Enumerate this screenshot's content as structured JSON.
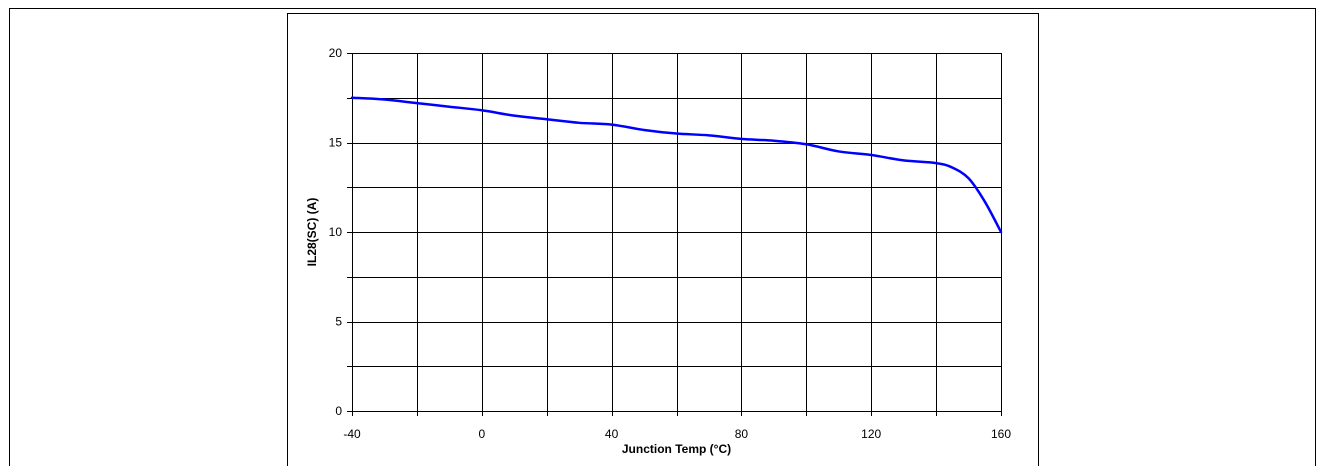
{
  "chart_data": {
    "type": "line",
    "title": "",
    "xlabel": "Junction Temp (°C)",
    "ylabel": "IL28(SC)  (A)",
    "xlim": [
      -40,
      160
    ],
    "ylim": [
      0,
      20
    ],
    "x_ticks": [
      -40,
      0,
      40,
      80,
      120,
      160
    ],
    "x_tick_labels": [
      "-40",
      "0",
      "40",
      "80",
      "120",
      "160"
    ],
    "x_grid_step": 20,
    "y_ticks": [
      0,
      5,
      10,
      15,
      20
    ],
    "y_tick_labels": [
      "0",
      "5",
      "10",
      "15",
      "20"
    ],
    "y_grid_step": 2.5,
    "grid": true,
    "legend": "none",
    "series": [
      {
        "color": "#0000ff",
        "x": [
          -40,
          -30,
          -20,
          -10,
          0,
          10,
          20,
          30,
          40,
          50,
          60,
          70,
          80,
          90,
          100,
          110,
          120,
          130,
          140,
          145,
          150,
          155,
          160
        ],
        "y": [
          17.5,
          17.4,
          17.2,
          17.0,
          16.8,
          16.5,
          16.3,
          16.1,
          16.0,
          15.7,
          15.5,
          15.4,
          15.2,
          15.1,
          14.9,
          14.5,
          14.3,
          14.0,
          13.85,
          13.6,
          13.0,
          11.7,
          10.0
        ]
      }
    ]
  }
}
